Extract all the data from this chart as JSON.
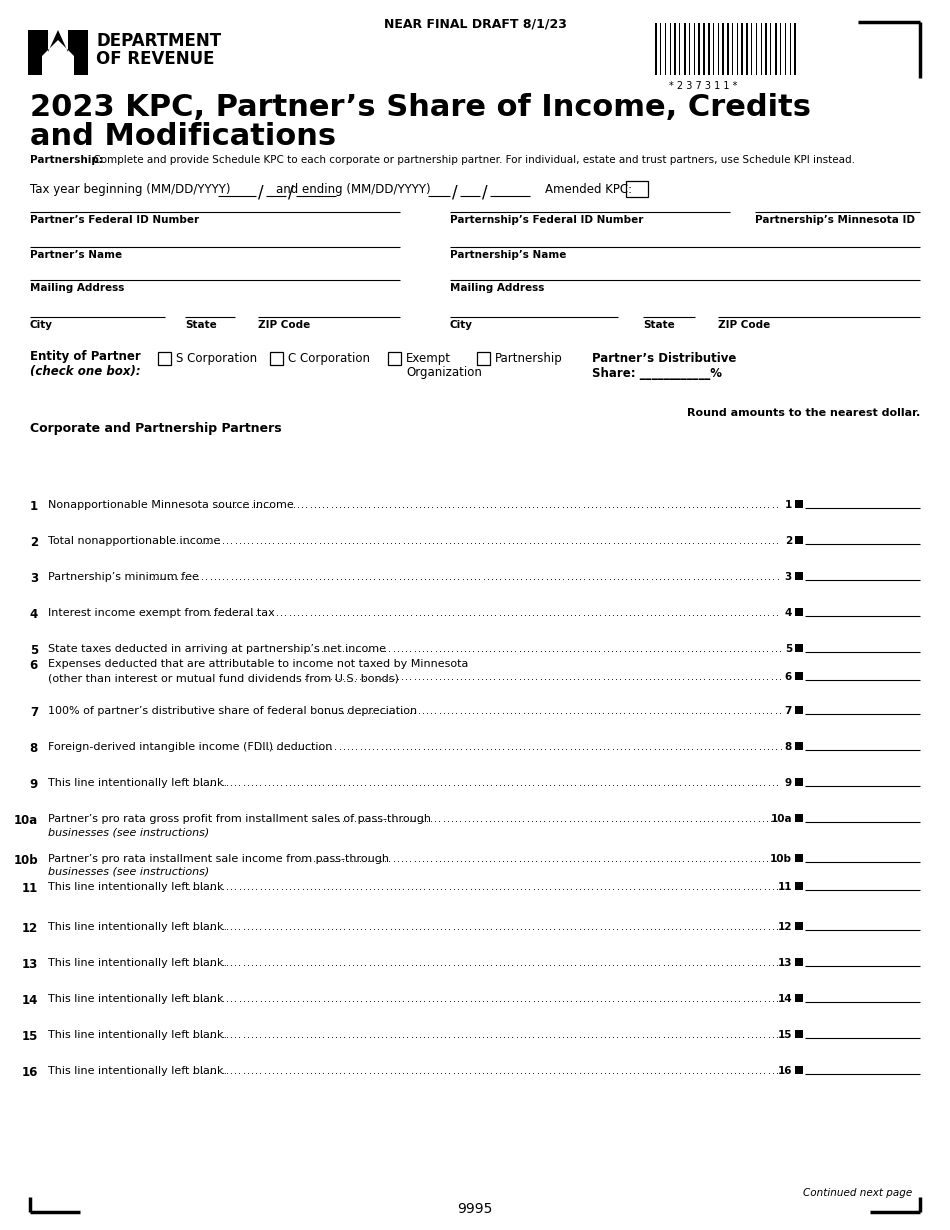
{
  "title_line1": "2023 KPC, Partner’s Share of Income, Credits",
  "title_line2": "and Modifications",
  "draft_text": "NEAR FINAL DRAFT 8/1/23",
  "barcode_text": "* 2 3 7 3 1 1 *",
  "dept_name1": "DEPARTMENT",
  "dept_name2": "OF REVENUE",
  "partnership_note_bold": "Partnership:",
  "partnership_note_rest": " Complete and provide Schedule KPC to each corporate or partnership partner. For individual, estate and trust partners, use Schedule KPI instead.",
  "tax_year_text": "Tax year beginning (MM/DD/YYYY)",
  "and_ending_text": "and ending (MM/DD/YYYY)",
  "amended_kpc_text": "Amended KPC:",
  "field_partner_fed_id": "Partner’s Federal ID Number",
  "field_partnership_fed_id": "Parternship’s Federal ID Number",
  "field_partnership_mn_id": "Partnership’s Minnesota ID",
  "field_partner_name": "Partner’s Name",
  "field_partnership_name": "Partnership’s Name",
  "field_mailing_addr": "Mailing Address",
  "field_city": "City",
  "field_state": "State",
  "field_zip": "ZIP Code",
  "entity_label1": "Entity of Partner",
  "entity_label2": "(check one box):",
  "entity_s_corp": "S Corporation",
  "entity_c_corp": "C Corporation",
  "entity_exempt": "Exempt",
  "entity_org": "Organization",
  "entity_partnership": "Partnership",
  "distributive_label1": "Partner’s Distributive",
  "distributive_label2": "Share: ____________%",
  "round_note": "Round amounts to the nearest dollar.",
  "section_header": "Corporate and Partnership Partners",
  "line_items": [
    {
      "num": "1",
      "text": "Nonapportionable Minnesota source income",
      "two_line": false
    },
    {
      "num": "2",
      "text": "Total nonapportionable income",
      "two_line": false
    },
    {
      "num": "3",
      "text": "Partnership’s minimum fee",
      "two_line": false
    },
    {
      "num": "4",
      "text": "Interest income exempt from federal tax",
      "two_line": false
    },
    {
      "num": "5",
      "text": "State taxes deducted in arriving at partnership’s net income",
      "two_line": false
    },
    {
      "num": "6",
      "text": "Expenses deducted that are attributable to income not taxed by Minnesota",
      "text2": "(other than interest or mutual fund dividends from U.S. bonds)",
      "two_line": true
    },
    {
      "num": "7",
      "text": "100% of partner’s distributive share of federal bonus depreciation",
      "two_line": false
    },
    {
      "num": "8",
      "text": "Foreign-derived intangible income (FDII) deduction",
      "two_line": false
    },
    {
      "num": "9",
      "text": "This line intentionally left blank.",
      "two_line": false
    },
    {
      "num": "10a",
      "text": "Partner’s pro rata gross profit from installment sales of pass-through",
      "two_line": false,
      "subtext": "businesses (see instructions)",
      "subitalic": true
    },
    {
      "num": "10b",
      "text": "Partner’s pro rata installment sale income from pass-through",
      "two_line": false,
      "subtext": "businesses (see instructions)",
      "subitalic": true
    },
    {
      "num": "11",
      "text": "This line intentionally left blank",
      "two_line": false
    },
    {
      "num": "12",
      "text": "This line intentionally left blank.",
      "two_line": false
    },
    {
      "num": "13",
      "text": "This line intentionally left blank.",
      "two_line": false
    },
    {
      "num": "14",
      "text": "This line intentionally left blank",
      "two_line": false
    },
    {
      "num": "15",
      "text": "This line intentionally left blank.",
      "two_line": false
    },
    {
      "num": "16",
      "text": "This line intentionally left blank.",
      "two_line": false
    }
  ],
  "line_y_positions": {
    "1": 500,
    "2": 536,
    "3": 572,
    "4": 608,
    "5": 644,
    "6": 659,
    "7": 706,
    "8": 742,
    "9": 778,
    "10a": 814,
    "10b": 854,
    "11": 882,
    "12": 922,
    "13": 958,
    "14": 994,
    "15": 1030,
    "16": 1066
  },
  "footer_page_num": "9995",
  "continued_text": "Continued next page"
}
